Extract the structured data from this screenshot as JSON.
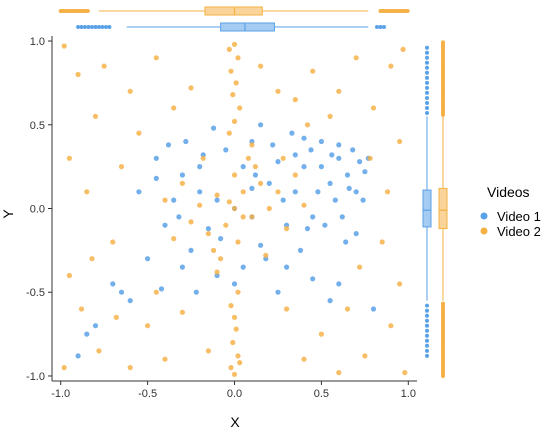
{
  "chart_data": {
    "type": "scatter",
    "title": "",
    "xlabel": "X",
    "ylabel": "Y",
    "xlim": [
      -1.05,
      1.05
    ],
    "ylim": [
      -1.03,
      1.03
    ],
    "xticks": [
      "-1.0",
      "-0.5",
      "0.0",
      "0.5",
      "1.0"
    ],
    "yticks": [
      "-1.0",
      "-0.5",
      "0.0",
      "0.5",
      "1.0"
    ],
    "xtick_values": [
      -1.0,
      -0.5,
      0.0,
      0.5,
      1.0
    ],
    "ytick_values": [
      -1.0,
      -0.5,
      0.0,
      0.5,
      1.0
    ],
    "grid": false,
    "legend": {
      "title": "Videos",
      "placement": "right"
    },
    "marginal_plots": "boxplot",
    "series": [
      {
        "name": "Video 1",
        "color": "#5aa2e8",
        "points": [
          [
            0.0,
            0.0
          ],
          [
            -0.1,
            0.05
          ],
          [
            0.1,
            -0.05
          ],
          [
            -0.2,
            0.1
          ],
          [
            0.2,
            0.15
          ],
          [
            -0.15,
            -0.12
          ],
          [
            0.12,
            0.2
          ],
          [
            -0.3,
            0.2
          ],
          [
            0.3,
            -0.1
          ],
          [
            -0.25,
            -0.25
          ],
          [
            0.25,
            0.28
          ],
          [
            -0.35,
            0.05
          ],
          [
            0.35,
            0.1
          ],
          [
            -0.05,
            0.35
          ],
          [
            0.05,
            -0.35
          ],
          [
            -0.4,
            -0.1
          ],
          [
            0.4,
            0.25
          ],
          [
            -0.18,
            0.32
          ],
          [
            0.18,
            -0.3
          ],
          [
            -0.3,
            -0.35
          ],
          [
            0.22,
            0.38
          ],
          [
            -0.45,
            0.18
          ],
          [
            0.45,
            -0.05
          ],
          [
            0.1,
            0.4
          ],
          [
            -0.1,
            -0.4
          ],
          [
            0.55,
            0.15
          ],
          [
            0.6,
            0.3
          ],
          [
            0.65,
            0.2
          ],
          [
            0.7,
            0.1
          ],
          [
            0.72,
            0.28
          ],
          [
            0.58,
            0.05
          ],
          [
            0.62,
            -0.05
          ],
          [
            0.68,
            0.35
          ],
          [
            0.75,
            0.22
          ],
          [
            0.5,
            0.25
          ],
          [
            0.52,
            -0.1
          ],
          [
            0.66,
            0.12
          ],
          [
            0.74,
            0.05
          ],
          [
            0.6,
            0.38
          ],
          [
            0.56,
            0.32
          ],
          [
            0.48,
            0.1
          ],
          [
            0.7,
            -0.15
          ],
          [
            0.44,
            0.35
          ],
          [
            0.64,
            -0.2
          ],
          [
            0.77,
            0.3
          ],
          [
            -0.5,
            -0.3
          ],
          [
            -0.55,
            0.1
          ],
          [
            -0.28,
            0.4
          ],
          [
            0.3,
            -0.35
          ],
          [
            0.38,
            -0.25
          ],
          [
            -0.6,
            -0.55
          ],
          [
            -0.8,
            -0.7
          ],
          [
            -0.9,
            -0.88
          ],
          [
            -0.7,
            -0.45
          ],
          [
            0.55,
            -0.55
          ],
          [
            0.45,
            -0.42
          ],
          [
            -0.42,
            -0.48
          ],
          [
            0.15,
            0.5
          ],
          [
            -0.12,
            0.48
          ],
          [
            0.4,
            0.42
          ],
          [
            -0.65,
            -0.5
          ],
          [
            0.33,
            0.45
          ],
          [
            -0.38,
            0.38
          ],
          [
            0.0,
            -0.45
          ],
          [
            0.6,
            -0.45
          ],
          [
            0.8,
            -0.6
          ],
          [
            -0.85,
            -0.75
          ],
          [
            0.25,
            -0.5
          ],
          [
            -0.22,
            -0.5
          ],
          [
            0.1,
            0.12
          ],
          [
            -0.08,
            -0.18
          ],
          [
            0.28,
            0.05
          ],
          [
            -0.32,
            -0.05
          ],
          [
            0.15,
            -0.22
          ],
          [
            -0.2,
            0.25
          ],
          [
            0.05,
            0.25
          ],
          [
            0.42,
            -0.12
          ],
          [
            0.5,
            0.4
          ],
          [
            0.35,
            0.32
          ],
          [
            -0.45,
            0.3
          ]
        ]
      },
      {
        "name": "Video 2",
        "color": "#f5b044",
        "points": [
          [
            0.0,
            0.0
          ],
          [
            0.05,
            0.1
          ],
          [
            -0.05,
            -0.1
          ],
          [
            0.1,
            -0.05
          ],
          [
            -0.1,
            0.08
          ],
          [
            0.15,
            0.15
          ],
          [
            -0.15,
            -0.15
          ],
          [
            0.2,
            0.0
          ],
          [
            -0.2,
            0.02
          ],
          [
            0.0,
            0.2
          ],
          [
            0.02,
            -0.2
          ],
          [
            0.12,
            0.25
          ],
          [
            -0.12,
            -0.25
          ],
          [
            0.25,
            0.1
          ],
          [
            -0.25,
            -0.08
          ],
          [
            0.3,
            -0.12
          ],
          [
            -0.3,
            0.15
          ],
          [
            0.08,
            0.3
          ],
          [
            -0.08,
            -0.3
          ],
          [
            0.18,
            -0.28
          ],
          [
            -0.18,
            0.3
          ],
          [
            0.35,
            0.2
          ],
          [
            -0.35,
            -0.18
          ],
          [
            0.05,
            -0.05
          ],
          [
            -0.03,
            0.04
          ],
          [
            0.4,
            0.02
          ],
          [
            -0.4,
            0.05
          ],
          [
            0.1,
            0.38
          ],
          [
            -0.1,
            -0.38
          ],
          [
            0.28,
            0.3
          ],
          [
            0.0,
            0.98
          ],
          [
            0.02,
            0.9
          ],
          [
            -0.02,
            0.82
          ],
          [
            0.01,
            0.75
          ],
          [
            -0.01,
            0.68
          ],
          [
            0.03,
            0.6
          ],
          [
            0.0,
            0.52
          ],
          [
            -0.03,
            0.45
          ],
          [
            0.02,
            -0.5
          ],
          [
            -0.02,
            -0.58
          ],
          [
            0.0,
            -0.65
          ],
          [
            0.01,
            -0.72
          ],
          [
            -0.01,
            -0.8
          ],
          [
            0.02,
            -0.88
          ],
          [
            -0.02,
            -0.95
          ],
          [
            0.0,
            -0.99
          ],
          [
            -0.03,
            0.95
          ],
          [
            0.03,
            -0.92
          ],
          [
            -0.9,
            0.8
          ],
          [
            -0.8,
            0.55
          ],
          [
            -0.75,
            0.85
          ],
          [
            -0.6,
            0.7
          ],
          [
            -0.95,
            0.3
          ],
          [
            -0.85,
            0.1
          ],
          [
            -0.7,
            -0.2
          ],
          [
            -0.95,
            -0.4
          ],
          [
            -0.88,
            -0.6
          ],
          [
            -0.78,
            -0.85
          ],
          [
            -0.6,
            -0.95
          ],
          [
            -0.5,
            -0.7
          ],
          [
            -0.45,
            0.9
          ],
          [
            -0.35,
            0.6
          ],
          [
            -0.55,
            0.45
          ],
          [
            -0.65,
            0.25
          ],
          [
            0.9,
            0.85
          ],
          [
            0.8,
            0.6
          ],
          [
            0.7,
            0.9
          ],
          [
            0.6,
            0.7
          ],
          [
            0.95,
            0.4
          ],
          [
            0.88,
            0.1
          ],
          [
            0.85,
            -0.2
          ],
          [
            0.95,
            -0.45
          ],
          [
            0.9,
            -0.7
          ],
          [
            0.75,
            -0.88
          ],
          [
            0.6,
            -0.98
          ],
          [
            0.5,
            -0.75
          ],
          [
            0.45,
            0.82
          ],
          [
            0.35,
            0.65
          ],
          [
            0.55,
            0.55
          ],
          [
            -0.98,
            -0.95
          ],
          [
            0.98,
            -0.98
          ],
          [
            -0.98,
            0.97
          ],
          [
            0.97,
            0.95
          ],
          [
            0.3,
            -0.6
          ],
          [
            -0.3,
            -0.62
          ],
          [
            0.25,
            0.7
          ],
          [
            -0.25,
            0.72
          ],
          [
            0.65,
            -0.6
          ],
          [
            -0.68,
            -0.65
          ],
          [
            0.78,
            0.3
          ],
          [
            -0.82,
            -0.3
          ],
          [
            0.4,
            -0.9
          ],
          [
            -0.4,
            -0.9
          ],
          [
            0.15,
            0.85
          ],
          [
            -0.15,
            -0.85
          ],
          [
            0.42,
            0.5
          ],
          [
            -0.45,
            -0.5
          ],
          [
            0.72,
            -0.35
          ]
        ]
      }
    ],
    "x_boxplots": [
      {
        "series": "Video 1",
        "min": -0.62,
        "q1": -0.08,
        "median": 0.06,
        "q3": 0.23,
        "max": 0.77
      },
      {
        "series": "Video 2",
        "min": -0.78,
        "q1": -0.17,
        "median": 0.0,
        "q3": 0.16,
        "max": 0.77
      }
    ],
    "y_boxplots": [
      {
        "series": "Video 1",
        "min": -0.55,
        "q1": -0.11,
        "median": -0.01,
        "q3": 0.11,
        "max": 0.55
      },
      {
        "series": "Video 2",
        "min": -0.55,
        "q1": -0.12,
        "median": -0.01,
        "q3": 0.12,
        "max": 0.55
      }
    ],
    "x_outlier_range": {
      "Video 1": [
        [
          -0.9,
          -0.72
        ],
        [
          0.82,
          0.86
        ]
      ],
      "Video 2": [
        [
          -1.0,
          -0.84
        ],
        [
          0.84,
          1.0
        ]
      ]
    },
    "y_outlier_range": {
      "Video 1": [
        [
          -0.88,
          -0.56
        ],
        [
          0.57,
          0.98
        ]
      ],
      "Video 2": [
        [
          -1.0,
          -0.56
        ],
        [
          0.56,
          1.0
        ]
      ]
    }
  }
}
